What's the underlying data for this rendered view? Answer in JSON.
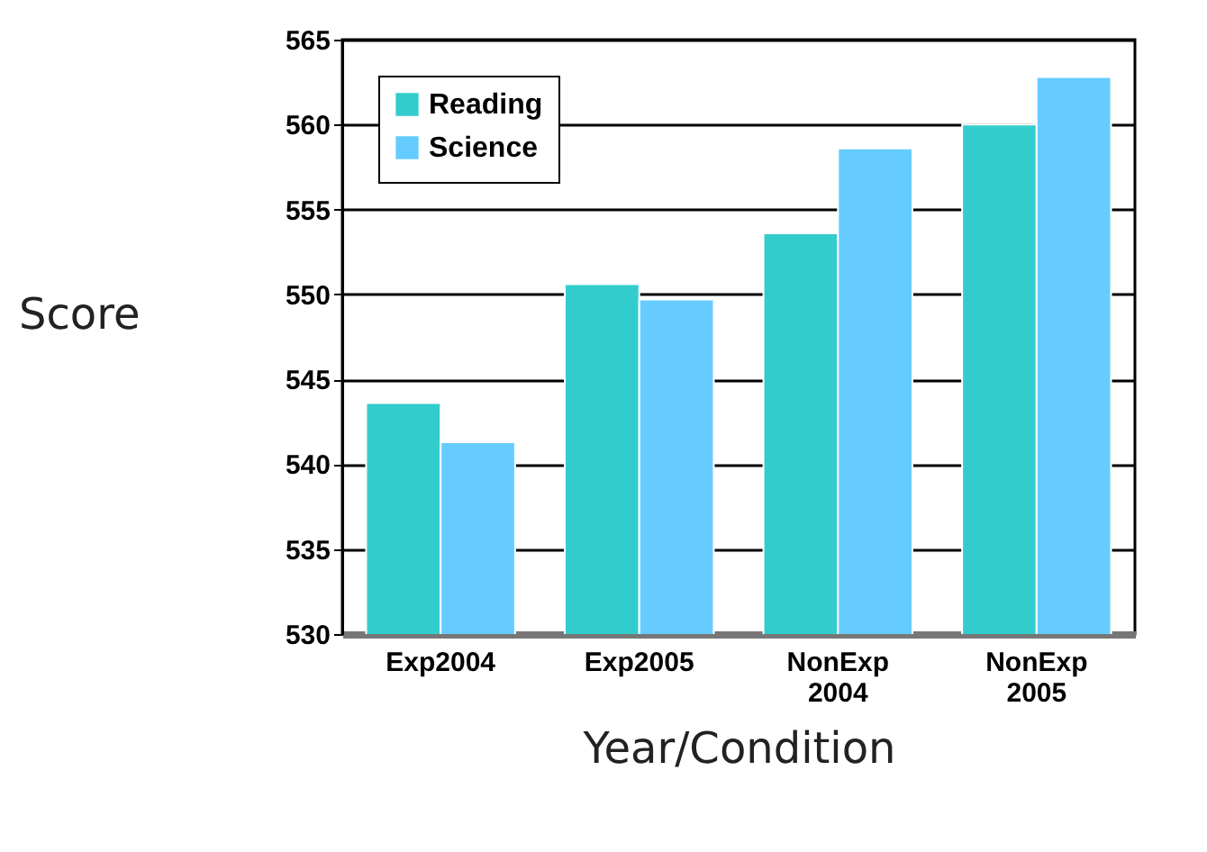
{
  "chart_data": {
    "type": "bar",
    "xlabel": "Year/Condition",
    "ylabel": "Score",
    "categories": [
      "Exp2004",
      "Exp2005",
      "NonExp 2004",
      "NonExp 2005"
    ],
    "series": [
      {
        "name": "Reading",
        "color": "#33cccc",
        "values": [
          543.6,
          550.6,
          553.6,
          560
        ]
      },
      {
        "name": "Science",
        "color": "#66ccff",
        "values": [
          541.3,
          549.7,
          558.6,
          562.8
        ]
      }
    ],
    "ylim": [
      530,
      565
    ],
    "yticks": [
      530,
      535,
      540,
      545,
      550,
      555,
      560,
      565
    ],
    "grid": "y",
    "legend": "top left"
  }
}
